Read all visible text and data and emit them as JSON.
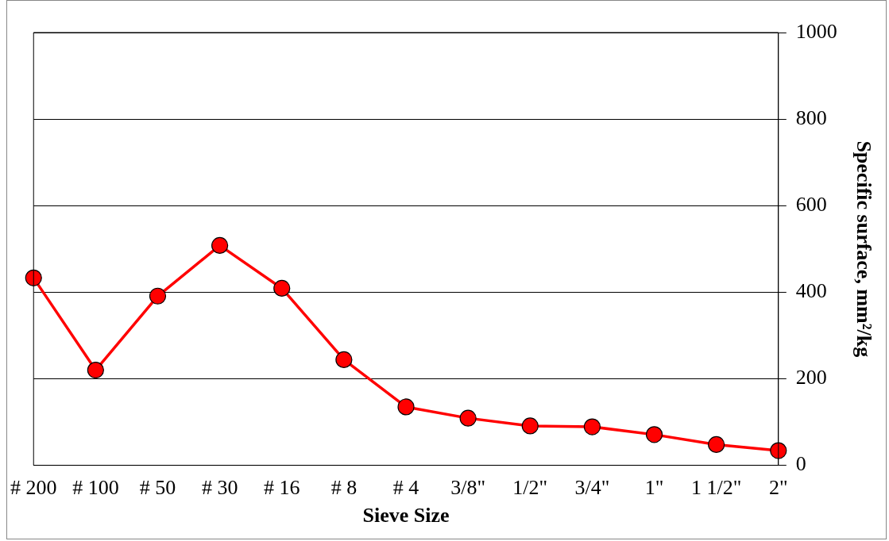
{
  "chart_data": {
    "type": "line",
    "xlabel": "Sieve Size",
    "ylabel": "Specific surface, mm²/kg",
    "categories": [
      "# 200",
      "# 100",
      "# 50",
      "# 30",
      "# 16",
      "# 8",
      "# 4",
      "3/8\"",
      "1/2\"",
      "3/4\"",
      "1\"",
      "1 1/2\"",
      "2\""
    ],
    "series": [
      {
        "color": "#ff0000",
        "values": [
          433,
          220,
          391,
          508,
          409,
          244,
          135,
          109,
          91,
          89,
          71,
          48,
          34
        ]
      }
    ],
    "ylim": [
      0,
      1000
    ],
    "yticks": [
      0,
      200,
      400,
      600,
      800,
      1000
    ],
    "grid": "y",
    "legend": false,
    "marker": "circle",
    "line_style": "solid"
  }
}
